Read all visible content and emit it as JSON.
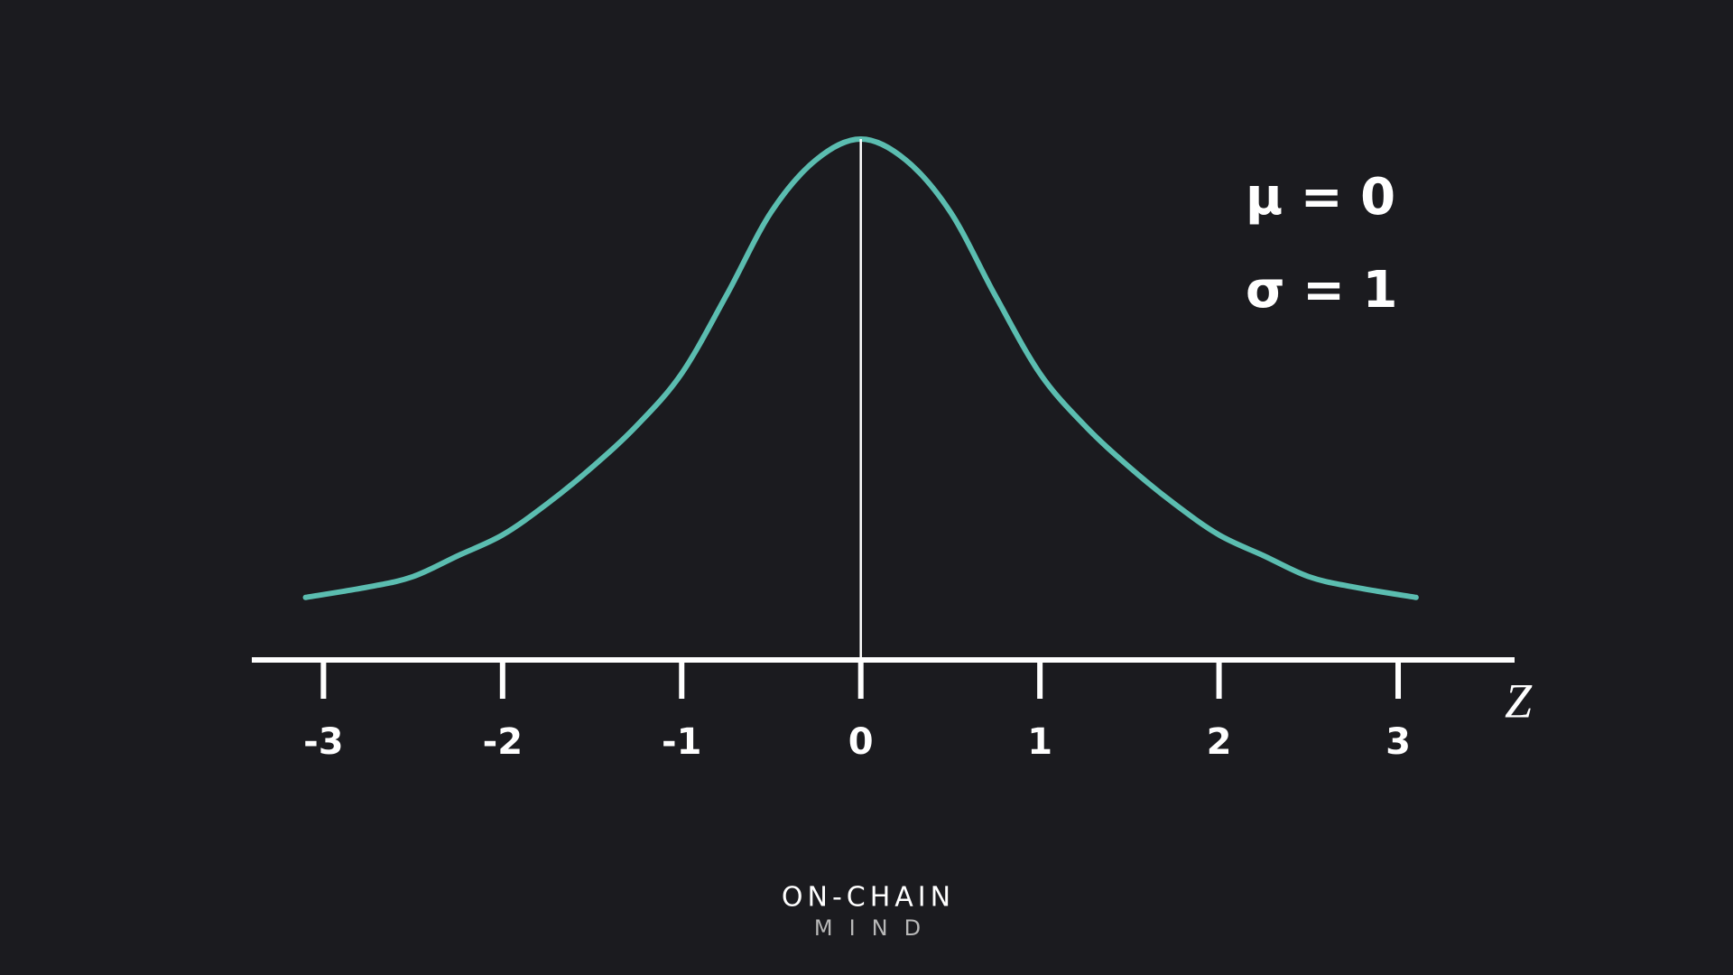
{
  "chart_data": {
    "type": "line",
    "x_label": "Z",
    "annotations": [
      "μ = 0",
      "σ = 1"
    ],
    "brand": [
      "ON-CHAIN",
      "MIND"
    ],
    "x": [
      -3.1,
      -2.75,
      -2.5,
      -2.25,
      -2,
      -1.75,
      -1.5,
      -1.25,
      -1,
      -0.75,
      -0.5,
      -0.25,
      0,
      0.25,
      0.5,
      0.75,
      1,
      1.25,
      1.5,
      1.75,
      2,
      2.25,
      2.5,
      2.75,
      3.1
    ],
    "series": [
      {
        "color": "#5bbdb0",
        "values": [
          0.12,
          0.14,
          0.16,
          0.2,
          0.24,
          0.3,
          0.37,
          0.45,
          0.55,
          0.7,
          0.86,
          0.96,
          1,
          0.96,
          0.86,
          0.7,
          0.55,
          0.45,
          0.37,
          0.3,
          0.24,
          0.2,
          0.16,
          0.14,
          0.12
        ]
      }
    ],
    "xlim": [
      -3.4,
      3.65
    ],
    "ylim": [
      0,
      1
    ],
    "xticks": [
      -3,
      -2,
      -1,
      0,
      1,
      2,
      3
    ]
  }
}
